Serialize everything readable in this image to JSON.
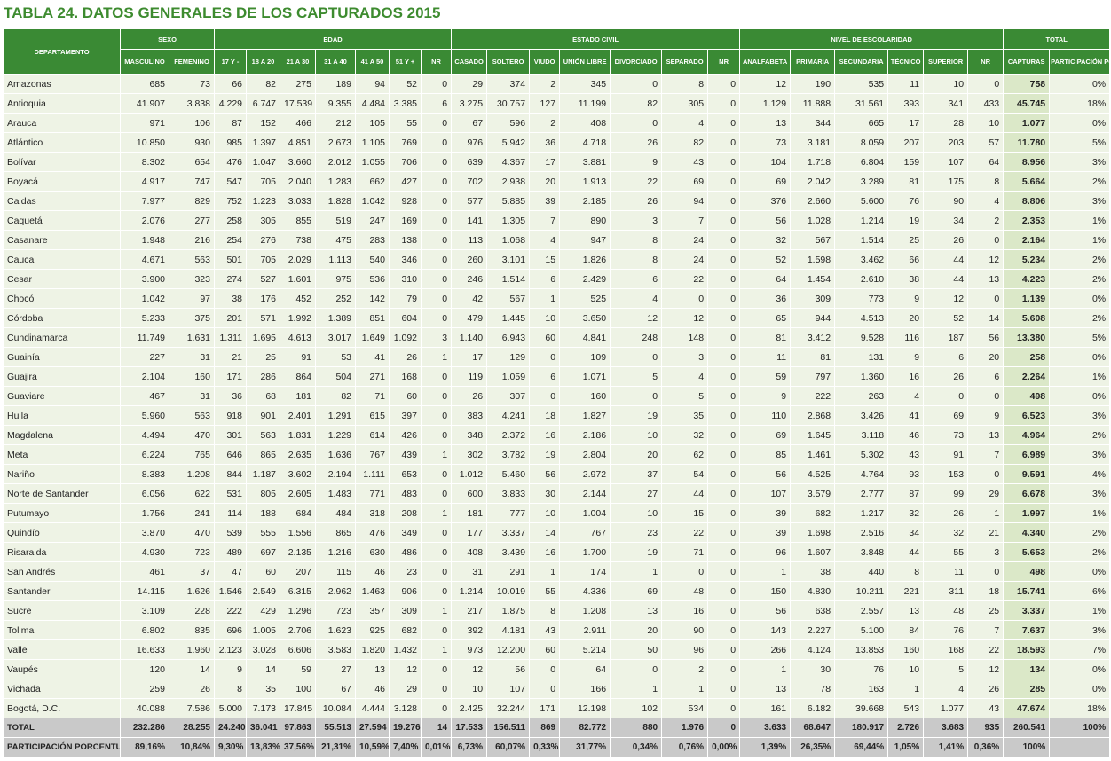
{
  "header": {
    "number": "TABLA 24.",
    "title": "DATOS GENERALES DE LOS CAPTURADOS 2015"
  },
  "table": {
    "groups": [
      "DEPARTAMENTO",
      "SEXO",
      "EDAD",
      "ESTADO CIVIL",
      "NIVEL DE ESCOLARIDAD",
      "TOTAL"
    ],
    "columns": [
      "MASCULINO",
      "FEMENINO",
      "17 Y -",
      "18 A 20",
      "21 A 30",
      "31 A 40",
      "41 A 50",
      "51 Y +",
      "NR",
      "CASADO",
      "SOLTERO",
      "VIUDO",
      "UNIÓN LIBRE",
      "DIVORCIADO",
      "SEPARADO",
      "NR",
      "ANALFABETA",
      "PRIMARIA",
      "SECUNDARIA",
      "TÉCNICO",
      "SUPERIOR",
      "NR",
      "CAPTURAS",
      "PARTICIPACIÓN PORCENTUAL"
    ],
    "rows": [
      [
        "Amazonas",
        "685",
        "73",
        "66",
        "82",
        "275",
        "189",
        "94",
        "52",
        "0",
        "29",
        "374",
        "2",
        "345",
        "0",
        "8",
        "0",
        "12",
        "190",
        "535",
        "11",
        "10",
        "0",
        "758",
        "0%"
      ],
      [
        "Antioquia",
        "41.907",
        "3.838",
        "4.229",
        "6.747",
        "17.539",
        "9.355",
        "4.484",
        "3.385",
        "6",
        "3.275",
        "30.757",
        "127",
        "11.199",
        "82",
        "305",
        "0",
        "1.129",
        "11.888",
        "31.561",
        "393",
        "341",
        "433",
        "45.745",
        "18%"
      ],
      [
        "Arauca",
        "971",
        "106",
        "87",
        "152",
        "466",
        "212",
        "105",
        "55",
        "0",
        "67",
        "596",
        "2",
        "408",
        "0",
        "4",
        "0",
        "13",
        "344",
        "665",
        "17",
        "28",
        "10",
        "1.077",
        "0%"
      ],
      [
        "Atlántico",
        "10.850",
        "930",
        "985",
        "1.397",
        "4.851",
        "2.673",
        "1.105",
        "769",
        "0",
        "976",
        "5.942",
        "36",
        "4.718",
        "26",
        "82",
        "0",
        "73",
        "3.181",
        "8.059",
        "207",
        "203",
        "57",
        "11.780",
        "5%"
      ],
      [
        "Bolívar",
        "8.302",
        "654",
        "476",
        "1.047",
        "3.660",
        "2.012",
        "1.055",
        "706",
        "0",
        "639",
        "4.367",
        "17",
        "3.881",
        "9",
        "43",
        "0",
        "104",
        "1.718",
        "6.804",
        "159",
        "107",
        "64",
        "8.956",
        "3%"
      ],
      [
        "Boyacá",
        "4.917",
        "747",
        "547",
        "705",
        "2.040",
        "1.283",
        "662",
        "427",
        "0",
        "702",
        "2.938",
        "20",
        "1.913",
        "22",
        "69",
        "0",
        "69",
        "2.042",
        "3.289",
        "81",
        "175",
        "8",
        "5.664",
        "2%"
      ],
      [
        "Caldas",
        "7.977",
        "829",
        "752",
        "1.223",
        "3.033",
        "1.828",
        "1.042",
        "928",
        "0",
        "577",
        "5.885",
        "39",
        "2.185",
        "26",
        "94",
        "0",
        "376",
        "2.660",
        "5.600",
        "76",
        "90",
        "4",
        "8.806",
        "3%"
      ],
      [
        "Caquetá",
        "2.076",
        "277",
        "258",
        "305",
        "855",
        "519",
        "247",
        "169",
        "0",
        "141",
        "1.305",
        "7",
        "890",
        "3",
        "7",
        "0",
        "56",
        "1.028",
        "1.214",
        "19",
        "34",
        "2",
        "2.353",
        "1%"
      ],
      [
        "Casanare",
        "1.948",
        "216",
        "254",
        "276",
        "738",
        "475",
        "283",
        "138",
        "0",
        "113",
        "1.068",
        "4",
        "947",
        "8",
        "24",
        "0",
        "32",
        "567",
        "1.514",
        "25",
        "26",
        "0",
        "2.164",
        "1%"
      ],
      [
        "Cauca",
        "4.671",
        "563",
        "501",
        "705",
        "2.029",
        "1.113",
        "540",
        "346",
        "0",
        "260",
        "3.101",
        "15",
        "1.826",
        "8",
        "24",
        "0",
        "52",
        "1.598",
        "3.462",
        "66",
        "44",
        "12",
        "5.234",
        "2%"
      ],
      [
        "Cesar",
        "3.900",
        "323",
        "274",
        "527",
        "1.601",
        "975",
        "536",
        "310",
        "0",
        "246",
        "1.514",
        "6",
        "2.429",
        "6",
        "22",
        "0",
        "64",
        "1.454",
        "2.610",
        "38",
        "44",
        "13",
        "4.223",
        "2%"
      ],
      [
        "Chocó",
        "1.042",
        "97",
        "38",
        "176",
        "452",
        "252",
        "142",
        "79",
        "0",
        "42",
        "567",
        "1",
        "525",
        "4",
        "0",
        "0",
        "36",
        "309",
        "773",
        "9",
        "12",
        "0",
        "1.139",
        "0%"
      ],
      [
        "Córdoba",
        "5.233",
        "375",
        "201",
        "571",
        "1.992",
        "1.389",
        "851",
        "604",
        "0",
        "479",
        "1.445",
        "10",
        "3.650",
        "12",
        "12",
        "0",
        "65",
        "944",
        "4.513",
        "20",
        "52",
        "14",
        "5.608",
        "2%"
      ],
      [
        "Cundinamarca",
        "11.749",
        "1.631",
        "1.311",
        "1.695",
        "4.613",
        "3.017",
        "1.649",
        "1.092",
        "3",
        "1.140",
        "6.943",
        "60",
        "4.841",
        "248",
        "148",
        "0",
        "81",
        "3.412",
        "9.528",
        "116",
        "187",
        "56",
        "13.380",
        "5%"
      ],
      [
        "Guainía",
        "227",
        "31",
        "21",
        "25",
        "91",
        "53",
        "41",
        "26",
        "1",
        "17",
        "129",
        "0",
        "109",
        "0",
        "3",
        "0",
        "11",
        "81",
        "131",
        "9",
        "6",
        "20",
        "258",
        "0%"
      ],
      [
        "Guajira",
        "2.104",
        "160",
        "171",
        "286",
        "864",
        "504",
        "271",
        "168",
        "0",
        "119",
        "1.059",
        "6",
        "1.071",
        "5",
        "4",
        "0",
        "59",
        "797",
        "1.360",
        "16",
        "26",
        "6",
        "2.264",
        "1%"
      ],
      [
        "Guaviare",
        "467",
        "31",
        "36",
        "68",
        "181",
        "82",
        "71",
        "60",
        "0",
        "26",
        "307",
        "0",
        "160",
        "0",
        "5",
        "0",
        "9",
        "222",
        "263",
        "4",
        "0",
        "0",
        "498",
        "0%"
      ],
      [
        "Huila",
        "5.960",
        "563",
        "918",
        "901",
        "2.401",
        "1.291",
        "615",
        "397",
        "0",
        "383",
        "4.241",
        "18",
        "1.827",
        "19",
        "35",
        "0",
        "110",
        "2.868",
        "3.426",
        "41",
        "69",
        "9",
        "6.523",
        "3%"
      ],
      [
        "Magdalena",
        "4.494",
        "470",
        "301",
        "563",
        "1.831",
        "1.229",
        "614",
        "426",
        "0",
        "348",
        "2.372",
        "16",
        "2.186",
        "10",
        "32",
        "0",
        "69",
        "1.645",
        "3.118",
        "46",
        "73",
        "13",
        "4.964",
        "2%"
      ],
      [
        "Meta",
        "6.224",
        "765",
        "646",
        "865",
        "2.635",
        "1.636",
        "767",
        "439",
        "1",
        "302",
        "3.782",
        "19",
        "2.804",
        "20",
        "62",
        "0",
        "85",
        "1.461",
        "5.302",
        "43",
        "91",
        "7",
        "6.989",
        "3%"
      ],
      [
        "Nariño",
        "8.383",
        "1.208",
        "844",
        "1.187",
        "3.602",
        "2.194",
        "1.111",
        "653",
        "0",
        "1.012",
        "5.460",
        "56",
        "2.972",
        "37",
        "54",
        "0",
        "56",
        "4.525",
        "4.764",
        "93",
        "153",
        "0",
        "9.591",
        "4%"
      ],
      [
        "Norte de Santander",
        "6.056",
        "622",
        "531",
        "805",
        "2.605",
        "1.483",
        "771",
        "483",
        "0",
        "600",
        "3.833",
        "30",
        "2.144",
        "27",
        "44",
        "0",
        "107",
        "3.579",
        "2.777",
        "87",
        "99",
        "29",
        "6.678",
        "3%"
      ],
      [
        "Putumayo",
        "1.756",
        "241",
        "114",
        "188",
        "684",
        "484",
        "318",
        "208",
        "1",
        "181",
        "777",
        "10",
        "1.004",
        "10",
        "15",
        "0",
        "39",
        "682",
        "1.217",
        "32",
        "26",
        "1",
        "1.997",
        "1%"
      ],
      [
        "Quindío",
        "3.870",
        "470",
        "539",
        "555",
        "1.556",
        "865",
        "476",
        "349",
        "0",
        "177",
        "3.337",
        "14",
        "767",
        "23",
        "22",
        "0",
        "39",
        "1.698",
        "2.516",
        "34",
        "32",
        "21",
        "4.340",
        "2%"
      ],
      [
        "Risaralda",
        "4.930",
        "723",
        "489",
        "697",
        "2.135",
        "1.216",
        "630",
        "486",
        "0",
        "408",
        "3.439",
        "16",
        "1.700",
        "19",
        "71",
        "0",
        "96",
        "1.607",
        "3.848",
        "44",
        "55",
        "3",
        "5.653",
        "2%"
      ],
      [
        "San Andrés",
        "461",
        "37",
        "47",
        "60",
        "207",
        "115",
        "46",
        "23",
        "0",
        "31",
        "291",
        "1",
        "174",
        "1",
        "0",
        "0",
        "1",
        "38",
        "440",
        "8",
        "11",
        "0",
        "498",
        "0%"
      ],
      [
        "Santander",
        "14.115",
        "1.626",
        "1.546",
        "2.549",
        "6.315",
        "2.962",
        "1.463",
        "906",
        "0",
        "1.214",
        "10.019",
        "55",
        "4.336",
        "69",
        "48",
        "0",
        "150",
        "4.830",
        "10.211",
        "221",
        "311",
        "18",
        "15.741",
        "6%"
      ],
      [
        "Sucre",
        "3.109",
        "228",
        "222",
        "429",
        "1.296",
        "723",
        "357",
        "309",
        "1",
        "217",
        "1.875",
        "8",
        "1.208",
        "13",
        "16",
        "0",
        "56",
        "638",
        "2.557",
        "13",
        "48",
        "25",
        "3.337",
        "1%"
      ],
      [
        "Tolima",
        "6.802",
        "835",
        "696",
        "1.005",
        "2.706",
        "1.623",
        "925",
        "682",
        "0",
        "392",
        "4.181",
        "43",
        "2.911",
        "20",
        "90",
        "0",
        "143",
        "2.227",
        "5.100",
        "84",
        "76",
        "7",
        "7.637",
        "3%"
      ],
      [
        "Valle",
        "16.633",
        "1.960",
        "2.123",
        "3.028",
        "6.606",
        "3.583",
        "1.820",
        "1.432",
        "1",
        "973",
        "12.200",
        "60",
        "5.214",
        "50",
        "96",
        "0",
        "266",
        "4.124",
        "13.853",
        "160",
        "168",
        "22",
        "18.593",
        "7%"
      ],
      [
        "Vaupés",
        "120",
        "14",
        "9",
        "14",
        "59",
        "27",
        "13",
        "12",
        "0",
        "12",
        "56",
        "0",
        "64",
        "0",
        "2",
        "0",
        "1",
        "30",
        "76",
        "10",
        "5",
        "12",
        "134",
        "0%"
      ],
      [
        "Vichada",
        "259",
        "26",
        "8",
        "35",
        "100",
        "67",
        "46",
        "29",
        "0",
        "10",
        "107",
        "0",
        "166",
        "1",
        "1",
        "0",
        "13",
        "78",
        "163",
        "1",
        "4",
        "26",
        "285",
        "0%"
      ],
      [
        "Bogotá, D.C.",
        "40.088",
        "7.586",
        "5.000",
        "7.173",
        "17.845",
        "10.084",
        "4.444",
        "3.128",
        "0",
        "2.425",
        "32.244",
        "171",
        "12.198",
        "102",
        "534",
        "0",
        "161",
        "6.182",
        "39.668",
        "543",
        "1.077",
        "43",
        "47.674",
        "18%"
      ]
    ],
    "total": [
      "TOTAL",
      "232.286",
      "28.255",
      "24.240",
      "36.041",
      "97.863",
      "55.513",
      "27.594",
      "19.276",
      "14",
      "17.533",
      "156.511",
      "869",
      "82.772",
      "880",
      "1.976",
      "0",
      "3.633",
      "68.647",
      "180.917",
      "2.726",
      "3.683",
      "935",
      "260.541",
      "100%"
    ],
    "share": [
      "PARTICIPACIÓN PORCENTUAL",
      "89,16%",
      "10,84%",
      "9,30%",
      "13,83%",
      "37,56%",
      "21,31%",
      "10,59%",
      "7,40%",
      "0,01%",
      "6,73%",
      "60,07%",
      "0,33%",
      "31,77%",
      "0,34%",
      "0,76%",
      "0,00%",
      "1,39%",
      "26,35%",
      "69,44%",
      "1,05%",
      "1,41%",
      "0,36%",
      "100%"
    ]
  }
}
